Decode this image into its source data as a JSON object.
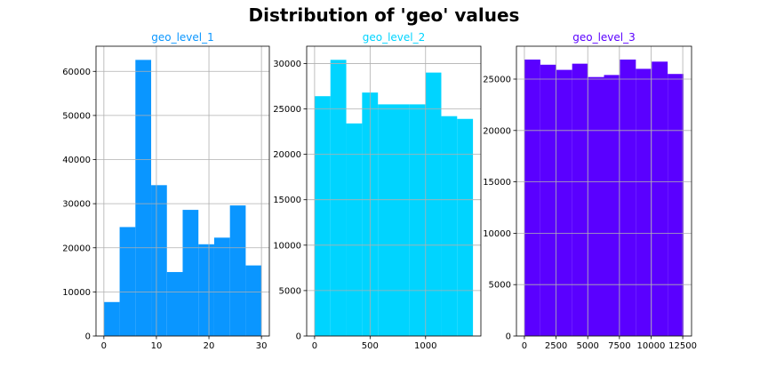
{
  "suptitle": "Distribution of 'geo' values",
  "chart_data": [
    {
      "type": "bar",
      "title": "geo_level_1",
      "color": "#0a96ff",
      "bin_edges": [
        0,
        3,
        6,
        9,
        12,
        15,
        18,
        21,
        24,
        27,
        30
      ],
      "values": [
        7700,
        24700,
        62600,
        34200,
        14500,
        28600,
        20800,
        22300,
        29600,
        16000
      ],
      "xlim": [
        -1.5,
        31.5
      ],
      "ylim": [
        0,
        65700
      ],
      "xticks": [
        0,
        10,
        20,
        30
      ],
      "yticks": [
        0,
        10000,
        20000,
        30000,
        40000,
        50000,
        60000
      ],
      "grid": true
    },
    {
      "type": "bar",
      "title": "geo_level_2",
      "color": "#00d4ff",
      "bin_edges": [
        0,
        142.7,
        285.4,
        428.1,
        570.8,
        713.5,
        856.2,
        998.9,
        1141.6,
        1284.3,
        1427
      ],
      "values": [
        26400,
        30400,
        23400,
        26800,
        25500,
        25500,
        25500,
        29000,
        24200,
        23900
      ],
      "xlim": [
        -71.35,
        1498.35
      ],
      "ylim": [
        0,
        31900
      ],
      "xticks": [
        0,
        500,
        1000
      ],
      "yticks": [
        0,
        5000,
        10000,
        15000,
        20000,
        25000,
        30000
      ],
      "grid": true
    },
    {
      "type": "bar",
      "title": "geo_level_3",
      "color": "#5a00ff",
      "bin_edges": [
        0,
        1256.7,
        2513.4,
        3770.1,
        5026.8,
        6283.5,
        7540.2,
        8796.9,
        10053.6,
        11310.3,
        12567
      ],
      "values": [
        26900,
        26400,
        25900,
        26500,
        25200,
        25400,
        26900,
        26000,
        26700,
        25500
      ],
      "xlim": [
        -628.35,
        13195.35
      ],
      "ylim": [
        0,
        28200
      ],
      "xticks": [
        0,
        2500,
        5000,
        7500,
        10000,
        12500
      ],
      "yticks": [
        0,
        5000,
        10000,
        15000,
        20000,
        25000
      ],
      "grid": true
    }
  ]
}
